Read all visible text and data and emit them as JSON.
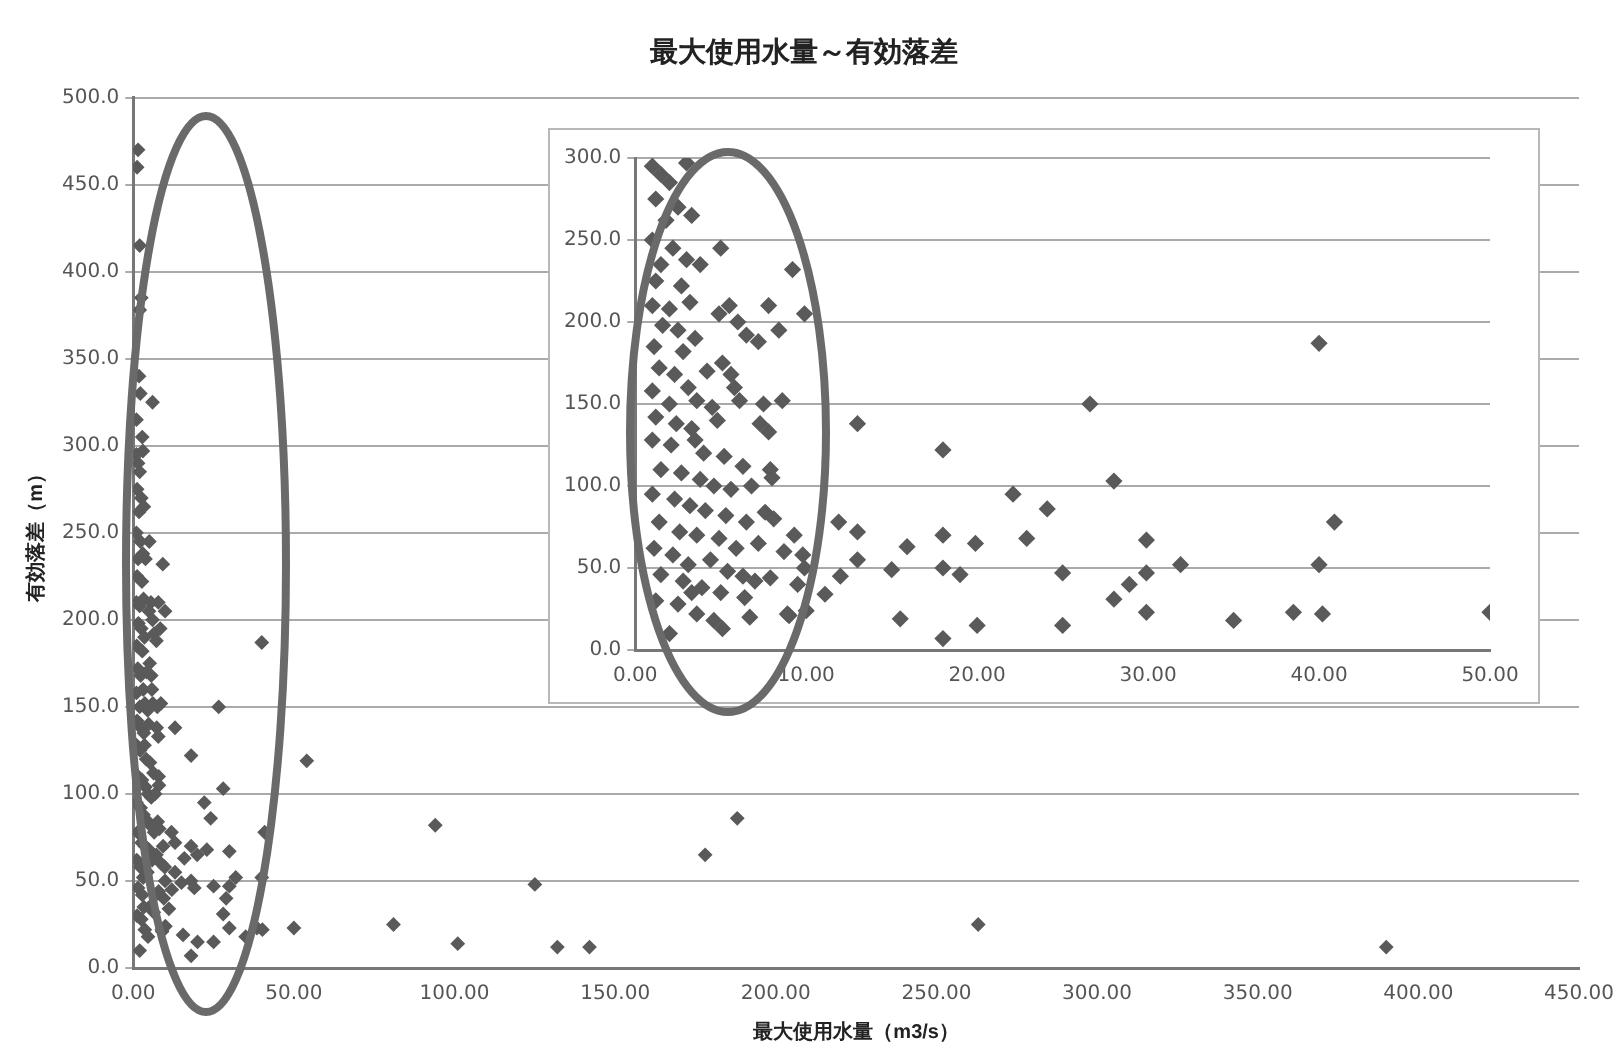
{
  "chart_data": [
    {
      "type": "scatter",
      "title": "最大使用水量～有効落差",
      "xlabel": "最大使用水量（m3/s）",
      "ylabel": "有効落差（m）",
      "marker": "diamond",
      "grid": "y",
      "legend": false,
      "xlim": [
        0,
        450
      ],
      "ylim": [
        0,
        500
      ],
      "xticks": [
        {
          "value": 0,
          "label": "0.00"
        },
        {
          "value": 50,
          "label": "50.00"
        },
        {
          "value": 100,
          "label": "100.00"
        },
        {
          "value": 150,
          "label": "150.00"
        },
        {
          "value": 200,
          "label": "200.00"
        },
        {
          "value": 250,
          "label": "250.00"
        },
        {
          "value": 300,
          "label": "300.00"
        },
        {
          "value": 350,
          "label": "350.00"
        },
        {
          "value": 400,
          "label": "400.00"
        },
        {
          "value": 450,
          "label": "450.00"
        }
      ],
      "yticks": [
        {
          "value": 0,
          "label": "0.0"
        },
        {
          "value": 50,
          "label": "50.0"
        },
        {
          "value": 100,
          "label": "100.0"
        },
        {
          "value": 150,
          "label": "150.0"
        },
        {
          "value": 200,
          "label": "200.0"
        },
        {
          "value": 250,
          "label": "250.0"
        },
        {
          "value": 300,
          "label": "300.0"
        },
        {
          "value": 350,
          "label": "350.0"
        },
        {
          "value": 400,
          "label": "400.0"
        },
        {
          "value": 450,
          "label": "450.0"
        },
        {
          "value": 500,
          "label": "500.0"
        }
      ],
      "series": [
        {
          "color": "#5a5a5a",
          "x": [
            1,
            1.5,
            2,
            3,
            1.2,
            2.5,
            1.8,
            3.3,
            1,
            2.2,
            1.5,
            3,
            3.8,
            5,
            1.2,
            2.7,
            1,
            2,
            3.2,
            1.6,
            2.5,
            3.5,
            1.1,
            2.8,
            4.9,
            5.5,
            6,
            7.8,
            6.5,
            7.2,
            8.4,
            9.2,
            9.9,
            1.4,
            2.3,
            3.1,
            4.2,
            5.1,
            5.6,
            1,
            2,
            3.6,
            4.5,
            5.8,
            6.1,
            7.5,
            8.6,
            1.2,
            2.4,
            3.3,
            4.8,
            7.3,
            7.8,
            1,
            2.1,
            3.5,
            4,
            5.2,
            6.3,
            7.9,
            8,
            1.5,
            2.7,
            3.8,
            4.6,
            5.6,
            6.8,
            1,
            2.3,
            3.2,
            4.1,
            5.3,
            6.5,
            7.6,
            8.1,
            1.4,
            2.6,
            3.6,
            4.9,
            5.9,
            7.2,
            8.7,
            9.3,
            9.8,
            1.1,
            2.2,
            3.1,
            4.4,
            7,
            7.9,
            1.5,
            2.8,
            5,
            6.4,
            1.2,
            2.5,
            3.6,
            4.6,
            8.9,
            9.9,
            9.5,
            2,
            3.3,
            40,
            26.6,
            13,
            18,
            28,
            22.1,
            24.1,
            40.9,
            11.9,
            13,
            15.9,
            18,
            19.9,
            22.9,
            29.9,
            13,
            15,
            18,
            19,
            25,
            29.9,
            31.9,
            40,
            28.9,
            28,
            9,
            10,
            11.1,
            15.5,
            18,
            20,
            25,
            29.9,
            35,
            38.5,
            40.2,
            50,
            12,
            1.5,
            1.2,
            2,
            2.5,
            2,
            1.8,
            2.2,
            6,
            1,
            2.8,
            54,
            94,
            178,
            188,
            125,
            81,
            101,
            132,
            142,
            263,
            390
          ],
          "values": [
            295,
            290,
            285,
            297,
            275,
            270,
            262,
            265,
            250,
            245,
            235,
            238,
            235,
            245,
            225,
            222,
            210,
            208,
            212,
            198,
            195,
            190,
            185,
            182,
            205,
            210,
            200,
            210,
            192,
            188,
            195,
            232,
            205,
            172,
            168,
            160,
            170,
            175,
            168,
            158,
            150,
            152,
            148,
            160,
            152,
            150,
            152,
            142,
            138,
            135,
            140,
            138,
            133,
            128,
            125,
            128,
            120,
            118,
            112,
            110,
            105,
            110,
            108,
            104,
            100,
            98,
            100,
            95,
            92,
            88,
            85,
            82,
            78,
            84,
            80,
            78,
            72,
            70,
            68,
            62,
            65,
            60,
            70,
            58,
            62,
            58,
            52,
            55,
            42,
            44,
            46,
            42,
            35,
            32,
            30,
            28,
            22,
            18,
            22,
            50,
            40,
            10,
            35,
            187,
            150,
            138,
            122,
            103,
            95,
            86,
            78,
            78,
            72,
            63,
            70,
            65,
            68,
            67,
            55,
            49,
            50,
            46,
            47,
            47,
            52,
            52,
            40,
            31,
            21,
            24,
            34,
            19,
            7,
            15,
            15,
            23,
            18,
            23,
            22,
            23,
            45,
            470,
            460,
            415,
            385,
            378,
            340,
            330,
            325,
            315,
            305,
            119,
            82,
            65,
            86,
            48,
            25,
            14,
            12,
            12,
            25,
            12
          ]
        }
      ]
    },
    {
      "type": "scatter",
      "marker": "diamond",
      "grid": "y",
      "legend": false,
      "xlim": [
        0,
        50
      ],
      "ylim": [
        0,
        300
      ],
      "xticks": [
        {
          "value": 0,
          "label": "0.00"
        },
        {
          "value": 10,
          "label": "10.00"
        },
        {
          "value": 20,
          "label": "20.00"
        },
        {
          "value": 30,
          "label": "30.00"
        },
        {
          "value": 40,
          "label": "40.00"
        },
        {
          "value": 50,
          "label": "50.00"
        }
      ],
      "yticks": [
        {
          "value": 0,
          "label": "0.0"
        },
        {
          "value": 50,
          "label": "50.0"
        },
        {
          "value": 100,
          "label": "100.0"
        },
        {
          "value": 150,
          "label": "150.0"
        },
        {
          "value": 200,
          "label": "200.0"
        },
        {
          "value": 250,
          "label": "250.0"
        },
        {
          "value": 300,
          "label": "300.0"
        }
      ],
      "series": [
        {
          "color": "#5a5a5a",
          "x": [
            1,
            1.5,
            2,
            3,
            1.2,
            2.5,
            1.8,
            3.3,
            1,
            2.2,
            1.5,
            3,
            3.8,
            5,
            1.2,
            2.7,
            1,
            2,
            3.2,
            1.6,
            2.5,
            3.5,
            1.1,
            2.8,
            4.9,
            5.5,
            6,
            7.8,
            6.5,
            7.2,
            8.4,
            9.2,
            9.9,
            1.4,
            2.3,
            3.1,
            4.2,
            5.1,
            5.6,
            1,
            2,
            3.6,
            4.5,
            5.8,
            6.1,
            7.5,
            8.6,
            1.2,
            2.4,
            3.3,
            4.8,
            7.3,
            7.8,
            1,
            2.1,
            3.5,
            4,
            5.2,
            6.3,
            7.9,
            8,
            1.5,
            2.7,
            3.8,
            4.6,
            5.6,
            6.8,
            1,
            2.3,
            3.2,
            4.1,
            5.3,
            6.5,
            7.6,
            8.1,
            1.4,
            2.6,
            3.6,
            4.9,
            5.9,
            7.2,
            8.7,
            9.3,
            9.8,
            1.1,
            2.2,
            3.1,
            4.4,
            5.4,
            6.3,
            7,
            7.9,
            1.5,
            2.8,
            3.9,
            5,
            6.4,
            1.2,
            2.5,
            3.6,
            4.6,
            5.1,
            6.7,
            8.9,
            9.9,
            9.5,
            2,
            3.3,
            40,
            26.6,
            13,
            18,
            28,
            22.1,
            24.1,
            40.9,
            11.9,
            13,
            15.9,
            18,
            19.9,
            22.9,
            29.9,
            13,
            15,
            18,
            19,
            25,
            29.9,
            31.9,
            40,
            28.9,
            28,
            9,
            10,
            11.1,
            15.5,
            18,
            20,
            25,
            29.9,
            35,
            38.5,
            40.2,
            50,
            12
          ],
          "values": [
            295,
            290,
            285,
            297,
            275,
            270,
            262,
            265,
            250,
            245,
            235,
            238,
            235,
            245,
            225,
            222,
            210,
            208,
            212,
            198,
            195,
            190,
            185,
            182,
            205,
            210,
            200,
            210,
            192,
            188,
            195,
            232,
            205,
            172,
            168,
            160,
            170,
            175,
            168,
            158,
            150,
            152,
            148,
            160,
            152,
            150,
            152,
            142,
            138,
            135,
            140,
            138,
            133,
            128,
            125,
            128,
            120,
            118,
            112,
            110,
            105,
            110,
            108,
            104,
            100,
            98,
            100,
            95,
            92,
            88,
            85,
            82,
            78,
            84,
            80,
            78,
            72,
            70,
            68,
            62,
            65,
            60,
            70,
            58,
            62,
            58,
            52,
            55,
            48,
            45,
            42,
            44,
            46,
            42,
            38,
            35,
            32,
            30,
            28,
            22,
            18,
            13,
            20,
            22,
            50,
            40,
            10,
            35,
            187,
            150,
            138,
            122,
            103,
            95,
            86,
            78,
            78,
            72,
            63,
            70,
            65,
            68,
            67,
            55,
            49,
            50,
            46,
            47,
            47,
            52,
            52,
            40,
            31,
            21,
            24,
            34,
            19,
            7,
            15,
            15,
            23,
            18,
            23,
            22,
            23,
            45
          ]
        }
      ]
    }
  ]
}
